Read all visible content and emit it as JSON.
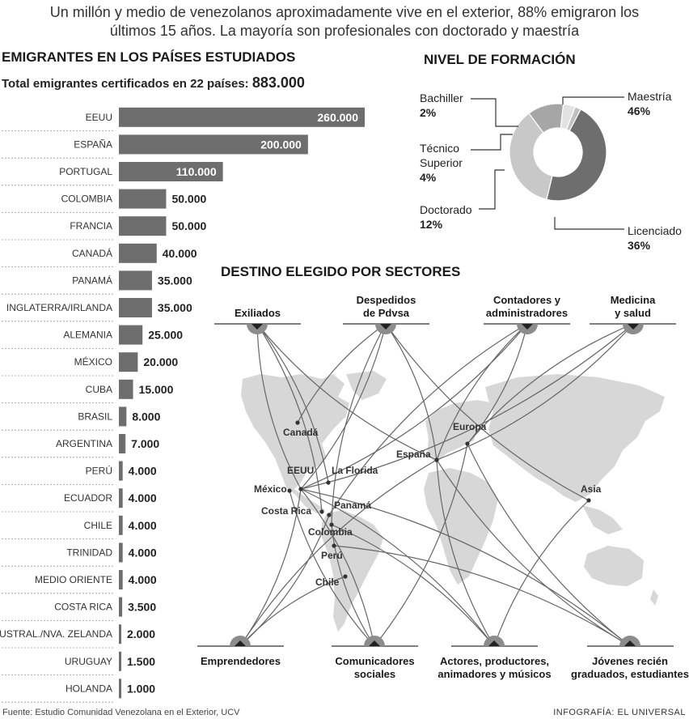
{
  "headline": {
    "line1": "Un millón y medio de venezolanos aproximadamente vive en el exterior, 88% emigraron los",
    "line2": "últimos 15 años. La mayoría son profesionales con doctorado y maestría"
  },
  "bars_section": {
    "title": "EMIGRANTES EN LOS PAÍSES ESTUDIADOS",
    "total_label": "Total emigrantes certificados en 22 países:",
    "total_value": "883.000"
  },
  "donut_section": {
    "title": "NIVEL DE FORMACIÓN"
  },
  "map_section": {
    "title": "DESTINO ELEGIDO POR SECTORES"
  },
  "footer": {
    "source": "Fuente: Estudio Comunidad Venezolana en el Exterior, UCV",
    "credit": "INFOGRAFÍA: EL UNIVERSAL"
  },
  "colors": {
    "bar": "#6e6e6e",
    "dark": "#6e6e6e",
    "medium": "#9e9e9e",
    "light": "#c8c8c8",
    "lighter": "#e2e2e2",
    "map_land": "#d7d7d7"
  },
  "chart_data": [
    {
      "type": "bar",
      "orientation": "horizontal",
      "title": "EMIGRANTES EN LOS PAÍSES ESTUDIADOS",
      "categories": [
        "EEUU",
        "ESPAÑA",
        "PORTUGAL",
        "COLOMBIA",
        "FRANCIA",
        "CANADÁ",
        "PANAMÁ",
        "INGLATERRA/IRLANDA",
        "ALEMANIA",
        "MÉXICO",
        "CUBA",
        "BRASIL",
        "ARGENTINA",
        "PERÚ",
        "ECUADOR",
        "CHILE",
        "TRINIDAD",
        "MEDIO ORIENTE",
        "COSTA RICA",
        "AUSTRAL./NVA. ZELANDA",
        "URUGUAY",
        "HOLANDA"
      ],
      "values": [
        260000,
        200000,
        110000,
        50000,
        50000,
        40000,
        35000,
        35000,
        25000,
        20000,
        15000,
        8000,
        7000,
        4000,
        4000,
        4000,
        4000,
        4000,
        3500,
        2000,
        1500,
        1000
      ],
      "value_labels": [
        "260.000",
        "200.000",
        "110.000",
        "50.000",
        "50.000",
        "40.000",
        "35.000",
        "35.000",
        "25.000",
        "20.000",
        "15.000",
        "8.000",
        "7.000",
        "4.000",
        "4.000",
        "4.000",
        "4.000",
        "4.000",
        "3.500",
        "2.000",
        "1.500",
        "1.000"
      ]
    },
    {
      "type": "pie",
      "donut": true,
      "title": "NIVEL DE FORMACIÓN",
      "slices": [
        {
          "label": "Maestría",
          "value": 46,
          "pct_label": "46%",
          "color": "#6e6e6e"
        },
        {
          "label": "Licenciado",
          "value": 36,
          "pct_label": "36%",
          "color": "#c8c8c8"
        },
        {
          "label": "Doctorado",
          "value": 12,
          "pct_label": "12%",
          "color": "#a6a6a6"
        },
        {
          "label": "Técnico Superior",
          "value": 4,
          "pct_label": "4%",
          "color": "#e2e2e2"
        },
        {
          "label": "Bachiller",
          "value": 2,
          "pct_label": "2%",
          "color": "#c0c0c0"
        }
      ]
    }
  ],
  "donut_labels": {
    "bachiller": {
      "name": "Bachiller",
      "pct": "2%"
    },
    "tecnico": {
      "name1": "Técnico",
      "name2": "Superior",
      "pct": "4%"
    },
    "doctorado": {
      "name": "Doctorado",
      "pct": "12%"
    },
    "maestria": {
      "name": "Maestría",
      "pct": "46%"
    },
    "licenciado": {
      "name": "Licenciado",
      "pct": "36%"
    }
  },
  "sectors": {
    "exiliados": "Exiliados",
    "pdvsa1": "Despedidos",
    "pdvsa2": "de Pdvsa",
    "contadores1": "Contadores y",
    "contadores2": "administradores",
    "medicina1": "Medicina",
    "medicina2": "y salud",
    "emprendedores": "Emprendedores",
    "comunicadores1": "Comunicadores",
    "comunicadores2": "sociales",
    "actores1": "Actores, productores,",
    "actores2": "animadores y músicos",
    "jovenes1": "Jóvenes recién",
    "jovenes2": "graduados, estudiantes"
  },
  "destinations": [
    "Canadá",
    "EEUU",
    "México",
    "La Florida",
    "Costa Rica",
    "Panamá",
    "Colombia",
    "Perú",
    "Chile",
    "España",
    "Europa",
    "Asia"
  ]
}
